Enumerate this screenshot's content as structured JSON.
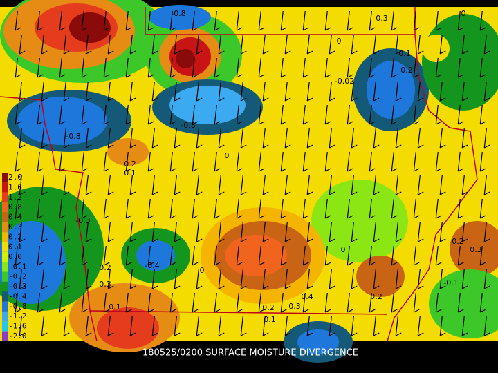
{
  "caption": "180525/0200 SURFACE MOISTURE DIVERGENCE",
  "legend": [
    {
      "label": "2.0",
      "color": "#8b0a0a"
    },
    {
      "label": "1.6",
      "color": "#c81414"
    },
    {
      "label": "1.2",
      "color": "#e63c1e"
    },
    {
      "label": "0.8",
      "color": "#f0641e"
    },
    {
      "label": "0.4",
      "color": "#c86414"
    },
    {
      "label": "0.3",
      "color": "#e68c14"
    },
    {
      "label": "0.2",
      "color": "#f5b400"
    },
    {
      "label": "0.1",
      "color": "#f5dc00"
    },
    {
      "label": "0.0",
      "color": "#d2f000"
    },
    {
      "label": "-0.1",
      "color": "#8ce614"
    },
    {
      "label": "-0.2",
      "color": "#3cc828"
    },
    {
      "label": "-0.3",
      "color": "#14961e"
    },
    {
      "label": "-0.4",
      "color": "#145a78"
    },
    {
      "label": "-0.8",
      "color": "#1e78dc"
    },
    {
      "label": "-1.2",
      "color": "#3caaf0"
    },
    {
      "label": "-1.6",
      "color": "#1ec8f0"
    },
    {
      "label": "-2.0",
      "color": "#8c3cc8"
    }
  ],
  "contour_labels": [
    "-0.8",
    "0.3",
    "0",
    "0",
    "0.1",
    "0.2",
    "-0.02",
    "-0.8",
    "-0.8",
    "0.2",
    "0.1",
    "0",
    "0.4",
    "0.3",
    "0.2",
    "0.1",
    "0.2",
    "0.3",
    "-0.1",
    "0.2",
    "0",
    "0",
    "-0.4",
    "0.3",
    "0.1",
    "-0.3",
    "0.2"
  ]
}
